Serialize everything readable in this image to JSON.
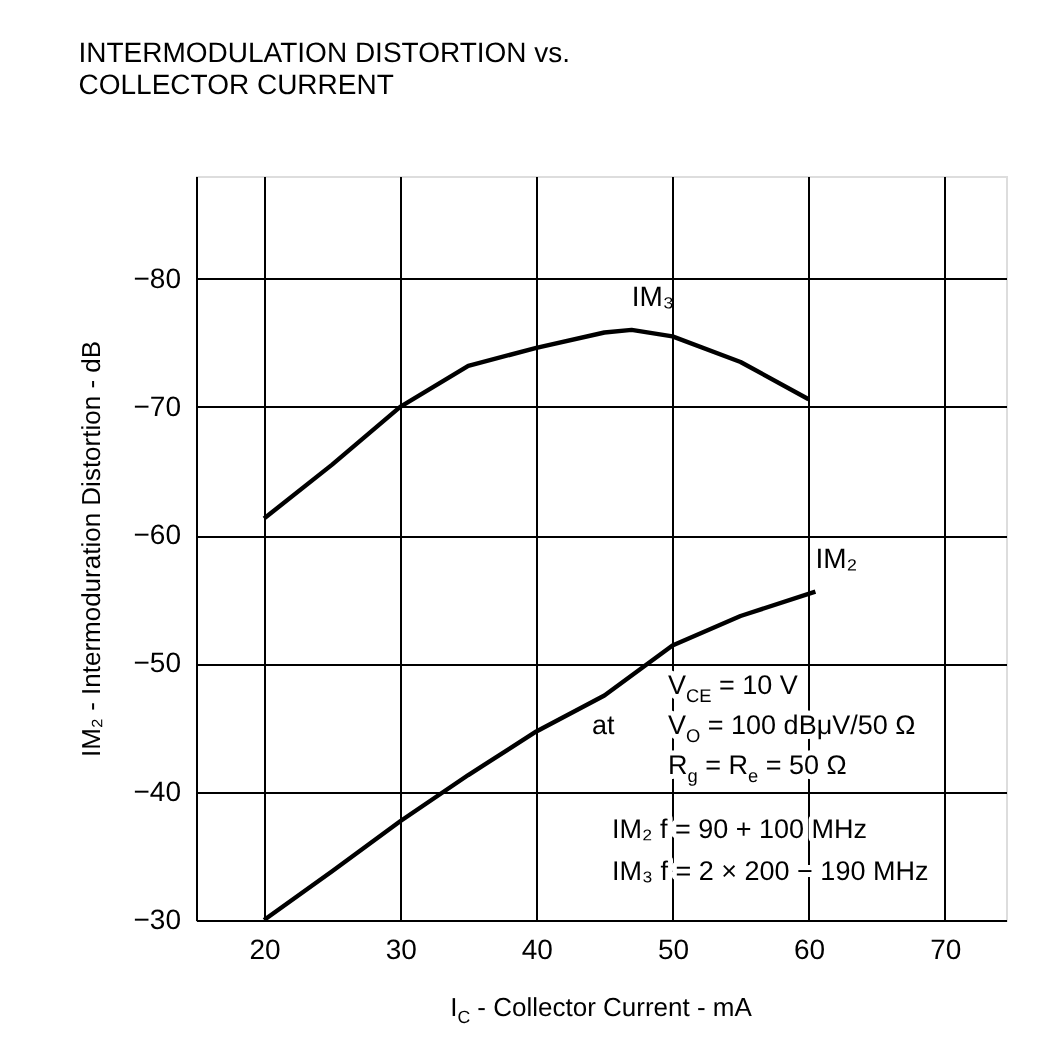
{
  "chart_data": {
    "type": "line",
    "title": "INTERMODULATION DISTORTION vs.\nCOLLECTOR CURRENT",
    "xlabel": "I$_{C}$ - Collector Current - mA",
    "ylabel": "IM₂ - Intermoduration Distortion - dB",
    "series": [
      {
        "name": "IM₃",
        "color": "#000000",
        "x": [
          20,
          25,
          30,
          35,
          40,
          45,
          47,
          50,
          55,
          60
        ],
        "values": [
          -61.3,
          -65.5,
          -70,
          -73.2,
          -74.6,
          -75.8,
          -76,
          -75.5,
          -73.5,
          -70.6
        ]
      },
      {
        "name": "IM₂",
        "color": "#000000",
        "x": [
          20,
          25,
          30,
          35,
          40,
          45,
          50,
          55,
          60.5
        ],
        "values": [
          -30,
          -33.8,
          -37.7,
          -41.3,
          -44.7,
          -47.5,
          -51.4,
          -53.7,
          -55.6
        ]
      }
    ],
    "xlim": [
      15,
      74.5
    ],
    "xticks": [
      20,
      30,
      40,
      50,
      60,
      70
    ],
    "ylim": [
      -30,
      -88
    ],
    "yticks": [
      -30,
      -40,
      -50,
      -60,
      -70,
      -80
    ],
    "grid": true,
    "legend": false,
    "marker": "none",
    "line_style": "solid",
    "annotations": [
      "at",
      "V$_{CE}$ = 10 V",
      "V$_{O}$ = 100 dBμV/50 Ω",
      "R$_{g}$ = R$_{e}$ = 50 Ω",
      "IM₂ f = 90 + 100 MHz",
      "IM₃ f = 2 × 200 − 190 MHz"
    ]
  }
}
